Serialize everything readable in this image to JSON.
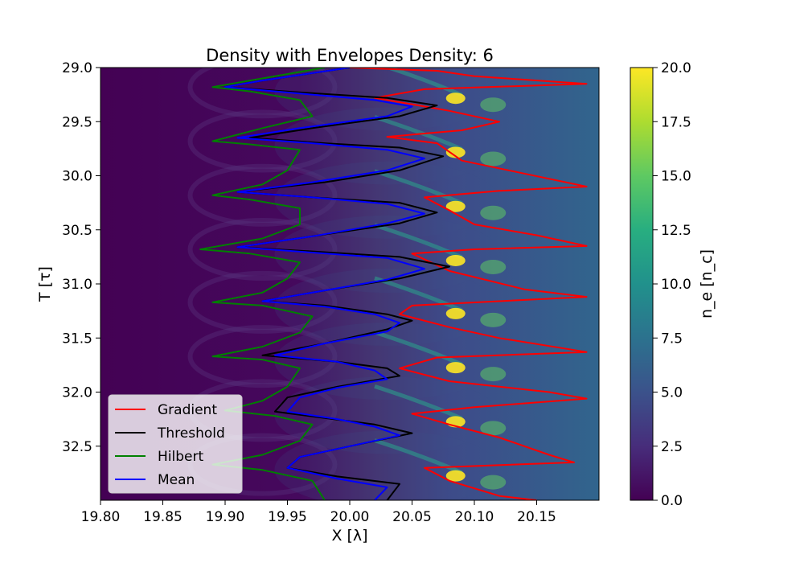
{
  "chart_data": {
    "type": "heatmap",
    "title": "Density with Envelopes Density: 6",
    "xlabel": "X [λ]",
    "ylabel": "T [τ]",
    "xlim": [
      19.8,
      20.2
    ],
    "ylim": [
      33.0,
      29.0
    ],
    "y_inverted": true,
    "x_ticks": [
      19.8,
      19.85,
      19.9,
      19.95,
      20.0,
      20.05,
      20.1,
      20.15
    ],
    "x_tick_labels": [
      "19.80",
      "19.85",
      "19.90",
      "19.95",
      "20.00",
      "20.05",
      "20.10",
      "20.15"
    ],
    "y_ticks": [
      29.0,
      29.5,
      30.0,
      30.5,
      31.0,
      31.5,
      32.0,
      32.5
    ],
    "y_tick_labels": [
      "29.0",
      "29.5",
      "30.0",
      "30.5",
      "31.0",
      "31.5",
      "32.0",
      "32.5"
    ],
    "colorbar": {
      "label": "n_e [n_c]",
      "range": [
        0.0,
        20.0
      ],
      "ticks": [
        0.0,
        2.5,
        5.0,
        7.5,
        10.0,
        12.5,
        15.0,
        17.5,
        20.0
      ],
      "tick_labels": [
        "0.0",
        "2.5",
        "5.0",
        "7.5",
        "10.0",
        "12.5",
        "15.0",
        "17.5",
        "20.0"
      ],
      "colormap": "viridis"
    },
    "legend_position": "lower-left",
    "peak_times": [
      29.18,
      29.68,
      30.18,
      30.68,
      31.17,
      31.67,
      32.17,
      32.67
    ],
    "series": [
      {
        "name": "Gradient",
        "color": "#ff0000",
        "points": [
          [
            20.0,
            29.0
          ],
          [
            20.07,
            29.03
          ],
          [
            20.1,
            29.08
          ],
          [
            20.19,
            29.15
          ],
          [
            20.06,
            29.2
          ],
          [
            20.02,
            29.28
          ],
          [
            20.06,
            29.36
          ],
          [
            20.08,
            29.4
          ],
          [
            20.12,
            29.5
          ],
          [
            20.09,
            29.58
          ],
          [
            20.03,
            29.64
          ],
          [
            20.07,
            29.7
          ],
          [
            20.09,
            29.86
          ],
          [
            20.14,
            29.98
          ],
          [
            20.19,
            30.1
          ],
          [
            20.12,
            30.14
          ],
          [
            20.06,
            30.2
          ],
          [
            20.08,
            30.32
          ],
          [
            20.1,
            30.45
          ],
          [
            20.15,
            30.55
          ],
          [
            20.19,
            30.65
          ],
          [
            20.1,
            30.68
          ],
          [
            20.05,
            30.72
          ],
          [
            20.08,
            30.88
          ],
          [
            20.14,
            31.05
          ],
          [
            20.19,
            31.12
          ],
          [
            20.05,
            31.2
          ],
          [
            20.04,
            31.28
          ],
          [
            20.08,
            31.4
          ],
          [
            20.12,
            31.5
          ],
          [
            20.19,
            31.63
          ],
          [
            20.07,
            31.68
          ],
          [
            20.04,
            31.78
          ],
          [
            20.08,
            31.9
          ],
          [
            20.16,
            32.0
          ],
          [
            20.19,
            32.06
          ],
          [
            20.1,
            32.14
          ],
          [
            20.05,
            32.2
          ],
          [
            20.08,
            32.3
          ],
          [
            20.12,
            32.42
          ],
          [
            20.16,
            32.58
          ],
          [
            20.18,
            32.65
          ],
          [
            20.06,
            32.7
          ],
          [
            20.08,
            32.82
          ],
          [
            20.12,
            32.96
          ],
          [
            20.15,
            33.0
          ]
        ]
      },
      {
        "name": "Threshold",
        "color": "#000000",
        "points": [
          [
            20.0,
            29.0
          ],
          [
            19.93,
            29.12
          ],
          [
            19.9,
            29.18
          ],
          [
            19.96,
            29.23
          ],
          [
            20.03,
            29.28
          ],
          [
            20.07,
            29.35
          ],
          [
            20.04,
            29.45
          ],
          [
            19.97,
            29.56
          ],
          [
            19.92,
            29.65
          ],
          [
            19.98,
            29.7
          ],
          [
            20.04,
            29.74
          ],
          [
            20.075,
            29.82
          ],
          [
            20.04,
            29.95
          ],
          [
            19.98,
            30.06
          ],
          [
            19.91,
            30.15
          ],
          [
            19.97,
            30.2
          ],
          [
            20.04,
            30.25
          ],
          [
            20.07,
            30.34
          ],
          [
            20.04,
            30.44
          ],
          [
            19.97,
            30.56
          ],
          [
            19.91,
            30.66
          ],
          [
            19.97,
            30.7
          ],
          [
            20.04,
            30.75
          ],
          [
            20.08,
            30.84
          ],
          [
            20.04,
            30.95
          ],
          [
            19.98,
            31.06
          ],
          [
            19.93,
            31.16
          ],
          [
            19.98,
            31.2
          ],
          [
            20.03,
            31.28
          ],
          [
            20.05,
            31.34
          ],
          [
            20.03,
            31.42
          ],
          [
            19.98,
            31.55
          ],
          [
            19.93,
            31.66
          ],
          [
            19.99,
            31.72
          ],
          [
            20.03,
            31.78
          ],
          [
            20.04,
            31.85
          ],
          [
            19.99,
            31.95
          ],
          [
            19.95,
            32.05
          ],
          [
            19.94,
            32.18
          ],
          [
            19.98,
            32.24
          ],
          [
            20.02,
            32.3
          ],
          [
            20.05,
            32.38
          ],
          [
            20.0,
            32.5
          ],
          [
            19.96,
            32.6
          ],
          [
            19.95,
            32.7
          ],
          [
            19.99,
            32.78
          ],
          [
            20.04,
            32.85
          ],
          [
            20.03,
            33.0
          ]
        ]
      },
      {
        "name": "Hilbert",
        "color": "#008000",
        "points": [
          [
            19.98,
            29.0
          ],
          [
            19.92,
            29.12
          ],
          [
            19.89,
            29.18
          ],
          [
            19.92,
            29.22
          ],
          [
            19.96,
            29.3
          ],
          [
            19.97,
            29.45
          ],
          [
            19.93,
            29.56
          ],
          [
            19.89,
            29.68
          ],
          [
            19.92,
            29.71
          ],
          [
            19.96,
            29.76
          ],
          [
            19.95,
            29.95
          ],
          [
            19.93,
            30.08
          ],
          [
            19.89,
            30.18
          ],
          [
            19.92,
            30.22
          ],
          [
            19.96,
            30.3
          ],
          [
            19.96,
            30.45
          ],
          [
            19.93,
            30.58
          ],
          [
            19.88,
            30.68
          ],
          [
            19.92,
            30.72
          ],
          [
            19.96,
            30.8
          ],
          [
            19.95,
            30.95
          ],
          [
            19.93,
            31.08
          ],
          [
            19.89,
            31.17
          ],
          [
            19.93,
            31.2
          ],
          [
            19.97,
            31.3
          ],
          [
            19.96,
            31.45
          ],
          [
            19.93,
            31.58
          ],
          [
            19.89,
            31.67
          ],
          [
            19.93,
            31.7
          ],
          [
            19.96,
            31.78
          ],
          [
            19.95,
            31.95
          ],
          [
            19.93,
            32.08
          ],
          [
            19.9,
            32.17
          ],
          [
            19.94,
            32.22
          ],
          [
            19.97,
            32.3
          ],
          [
            19.96,
            32.45
          ],
          [
            19.93,
            32.58
          ],
          [
            19.89,
            32.67
          ],
          [
            19.93,
            32.72
          ],
          [
            19.97,
            32.82
          ],
          [
            19.98,
            33.0
          ]
        ]
      },
      {
        "name": "Mean",
        "color": "#0000ff",
        "points": [
          [
            20.0,
            29.0
          ],
          [
            19.93,
            29.12
          ],
          [
            19.9,
            29.18
          ],
          [
            19.96,
            29.24
          ],
          [
            20.02,
            29.3
          ],
          [
            20.05,
            29.36
          ],
          [
            20.03,
            29.45
          ],
          [
            19.96,
            29.56
          ],
          [
            19.91,
            29.65
          ],
          [
            19.97,
            29.7
          ],
          [
            20.03,
            29.76
          ],
          [
            20.06,
            29.84
          ],
          [
            20.03,
            29.95
          ],
          [
            19.97,
            30.06
          ],
          [
            19.91,
            30.15
          ],
          [
            19.97,
            30.2
          ],
          [
            20.03,
            30.26
          ],
          [
            20.06,
            30.35
          ],
          [
            20.03,
            30.44
          ],
          [
            19.97,
            30.56
          ],
          [
            19.91,
            30.66
          ],
          [
            19.97,
            30.71
          ],
          [
            20.03,
            30.76
          ],
          [
            20.06,
            30.86
          ],
          [
            20.03,
            30.96
          ],
          [
            19.98,
            31.06
          ],
          [
            19.93,
            31.16
          ],
          [
            19.98,
            31.21
          ],
          [
            20.02,
            31.28
          ],
          [
            20.04,
            31.36
          ],
          [
            20.03,
            31.44
          ],
          [
            19.98,
            31.55
          ],
          [
            19.94,
            31.66
          ],
          [
            19.99,
            31.72
          ],
          [
            20.02,
            31.8
          ],
          [
            20.03,
            31.88
          ],
          [
            19.99,
            31.96
          ],
          [
            19.96,
            32.05
          ],
          [
            19.95,
            32.18
          ],
          [
            19.99,
            32.25
          ],
          [
            20.02,
            32.32
          ],
          [
            20.04,
            32.4
          ],
          [
            20.0,
            32.5
          ],
          [
            19.96,
            32.6
          ],
          [
            19.95,
            32.7
          ],
          [
            19.99,
            32.8
          ],
          [
            20.03,
            32.88
          ],
          [
            20.02,
            33.0
          ]
        ]
      }
    ]
  }
}
